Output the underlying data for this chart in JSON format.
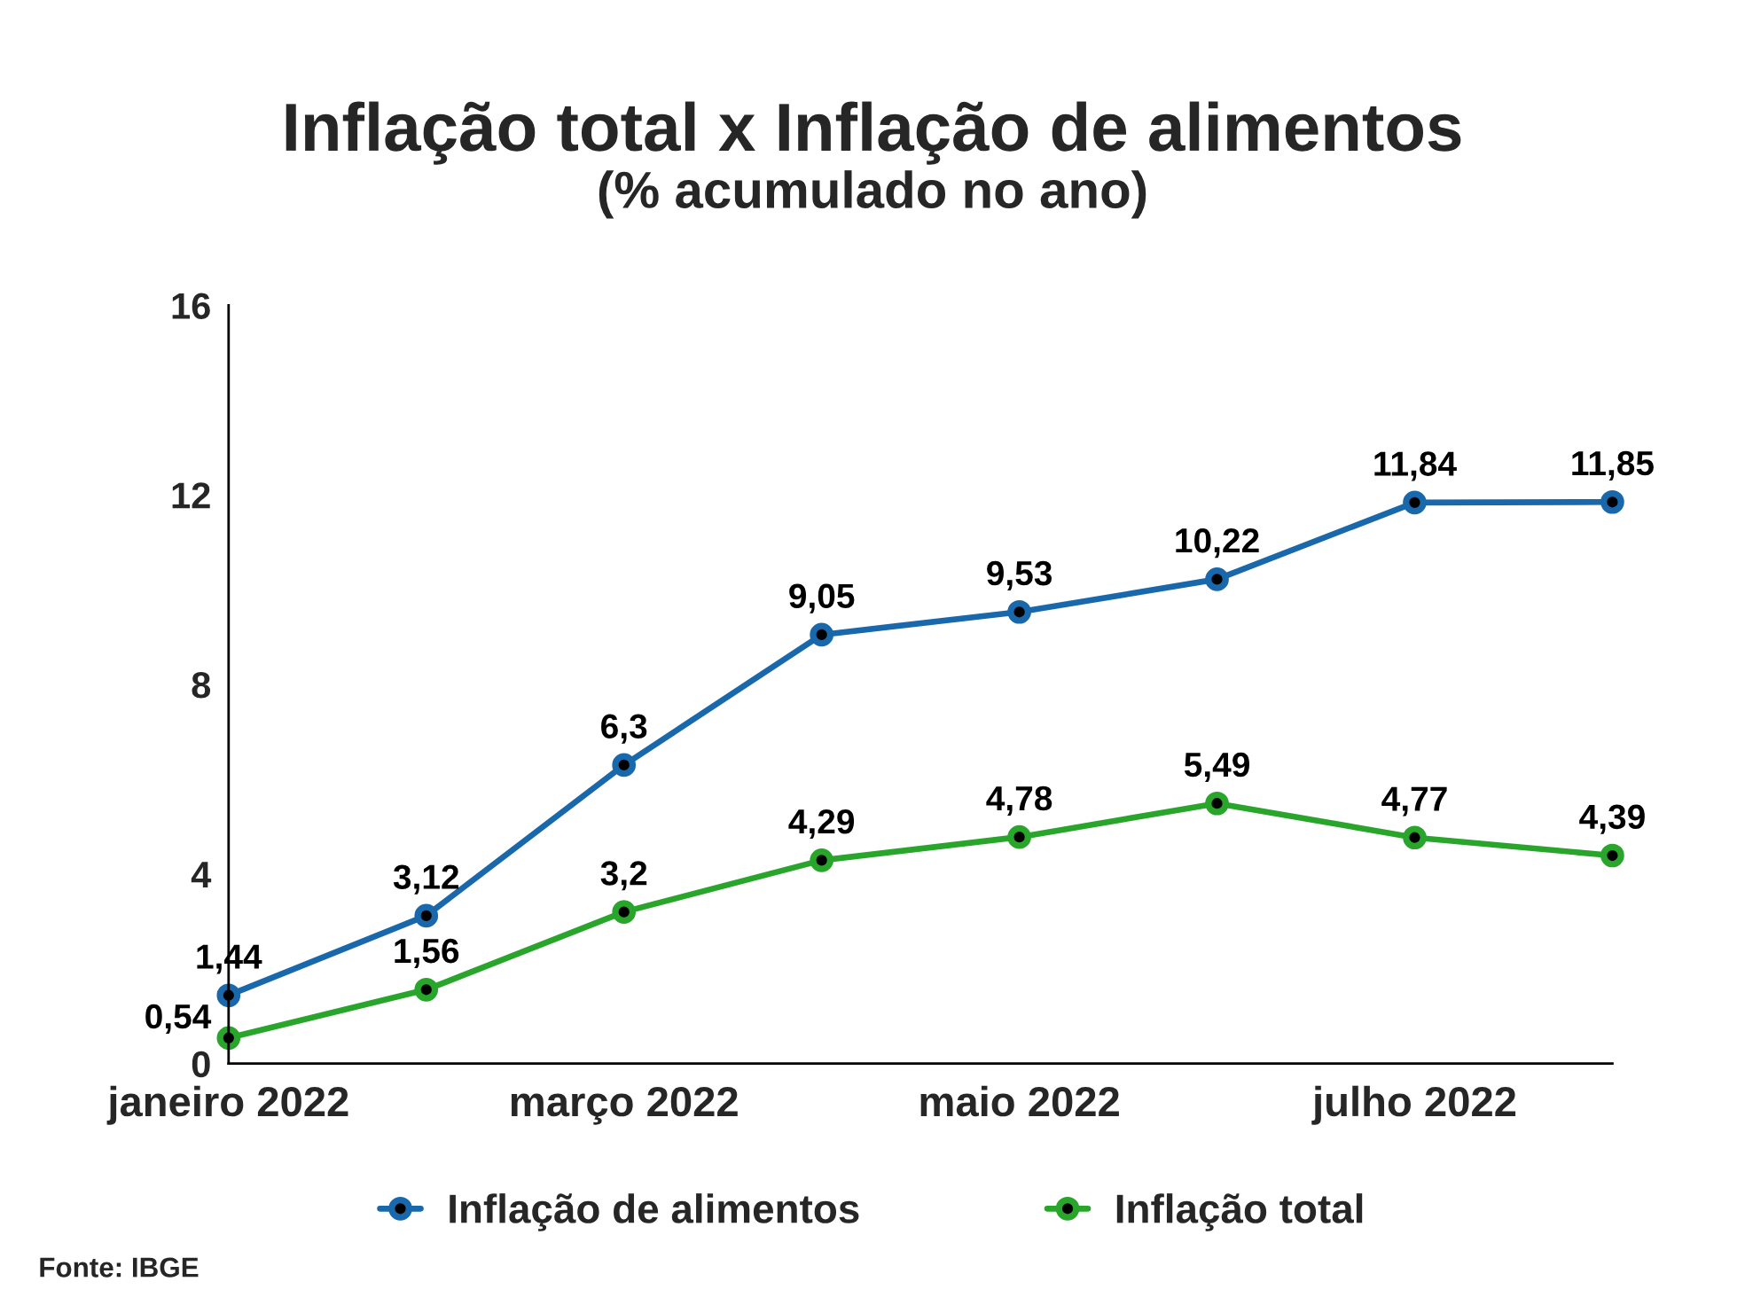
{
  "chart_data": {
    "type": "line",
    "title": "Inflação total x Inflação de alimentos",
    "subtitle": "(% acumulado no ano)",
    "categories": [
      "janeiro 2022",
      null,
      "março 2022",
      null,
      "maio 2022",
      null,
      "julho 2022",
      null
    ],
    "series": [
      {
        "name": "Inflação de alimentos",
        "color": "#1868ab",
        "values": [
          1.44,
          3.12,
          6.3,
          9.05,
          9.53,
          10.22,
          11.84,
          11.85
        ],
        "value_labels": [
          "1,44",
          "3,12",
          "6,3",
          "9,05",
          "9,53",
          "10,22",
          "11,84",
          "11,85"
        ]
      },
      {
        "name": "Inflação total",
        "color": "#2aa52c",
        "values": [
          0.54,
          1.56,
          3.2,
          4.29,
          4.78,
          5.49,
          4.77,
          4.39
        ],
        "value_labels": [
          "0,54",
          "1,56",
          "3,2",
          "4,29",
          "4,78",
          "5,49",
          "4,77",
          "4,39"
        ]
      }
    ],
    "ylim": [
      0,
      16
    ],
    "yticks": [
      0,
      4,
      8,
      12,
      16
    ],
    "marker": "circle",
    "line_style": "solid",
    "legend": "bottom",
    "annotations": [
      "Fonte: IBGE"
    ]
  }
}
